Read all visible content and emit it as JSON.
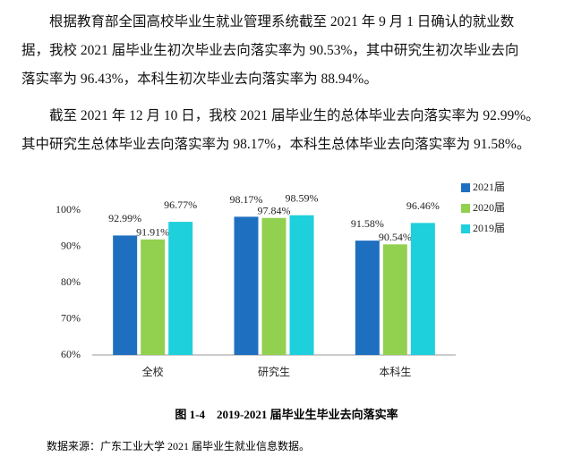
{
  "paragraphs": [
    {
      "lines": [
        "根据教育部全国高校毕业生就业管理系统截至 2021 年 9 月 1 日确认的就业数",
        "据，我校 2021 届毕业生初次毕业去向落实率为 90.53%，其中研究生初次毕业去向",
        "落实率为 96.43%，本科生初次毕业去向落实率为 88.94%。"
      ]
    },
    {
      "lines": [
        "截至 2021 年 12 月 10 日，我校 2021 届毕业生的总体毕业去向落实率为 92.99%。",
        "其中研究生总体毕业去向落实率为 98.17%，本科生总体毕业去向落实率为 91.58%。"
      ]
    }
  ],
  "chart_data": {
    "type": "bar",
    "categories": [
      "全校",
      "研究生",
      "本科生"
    ],
    "series": [
      {
        "name": "2021届",
        "color": "#1f6fc0",
        "values": [
          92.99,
          98.17,
          91.58
        ],
        "value_labels": [
          "92.99%",
          "98.17%",
          "91.58%"
        ]
      },
      {
        "name": "2020届",
        "color": "#92d050",
        "values": [
          91.91,
          97.84,
          90.54
        ],
        "value_labels": [
          "91.91%",
          "97.84%",
          "90.54%"
        ]
      },
      {
        "name": "2019届",
        "color": "#1ecfdc",
        "values": [
          96.77,
          98.59,
          96.46
        ],
        "value_labels": [
          "96.77%",
          "98.59%",
          "96.46%"
        ]
      }
    ],
    "ylim": [
      60,
      100
    ],
    "yticks": [
      {
        "value": 60,
        "label": "60%"
      },
      {
        "value": 70,
        "label": "70%"
      },
      {
        "value": 80,
        "label": "80%"
      },
      {
        "value": 90,
        "label": "90%"
      },
      {
        "value": 100,
        "label": "100%"
      }
    ],
    "legend": "right"
  },
  "caption": "图 1-4　2019-2021 届毕业生毕业去向落实率",
  "source": "数据来源：广东工业大学 2021 届毕业生就业信息数据。"
}
